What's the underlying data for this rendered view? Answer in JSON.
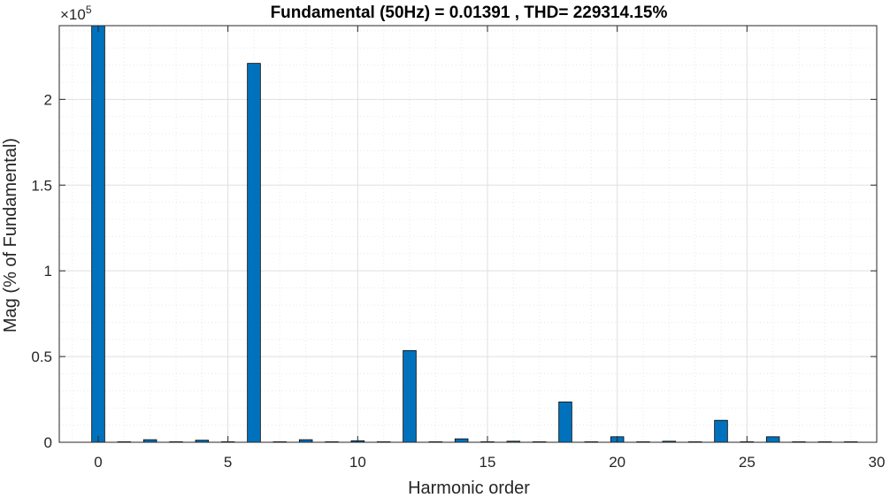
{
  "chart_data": {
    "type": "bar",
    "title": "Fundamental (50Hz) = 0.01391 , THD= 229314.15%",
    "xlabel": "Harmonic order",
    "ylabel": "Mag (% of Fundamental)",
    "y_exponent_base": "×10",
    "y_exponent_power": "5",
    "xlim": [
      -1.5,
      30
    ],
    "ylim": [
      0,
      243000
    ],
    "x_ticks": [
      0,
      5,
      10,
      15,
      20,
      25,
      30
    ],
    "x_tick_labels": [
      "0",
      "5",
      "10",
      "15",
      "20",
      "25",
      "30"
    ],
    "y_ticks": [
      0,
      50000,
      100000,
      150000,
      200000
    ],
    "y_tick_labels": [
      "0",
      "0.5",
      "1",
      "1.5",
      "2"
    ],
    "grid": true,
    "minor_grid": true,
    "bar_color": "#0072BD",
    "bar_edge_color": "#000000",
    "x": [
      0,
      1,
      2,
      3,
      4,
      5,
      6,
      7,
      8,
      9,
      10,
      11,
      12,
      13,
      14,
      15,
      16,
      17,
      18,
      19,
      20,
      21,
      22,
      23,
      24,
      25,
      26,
      27,
      28,
      29
    ],
    "values": [
      243000,
      300,
      1500,
      300,
      1200,
      300,
      221000,
      300,
      1500,
      300,
      900,
      300,
      53500,
      300,
      2000,
      300,
      600,
      300,
      23500,
      300,
      3200,
      300,
      600,
      300,
      12800,
      300,
      3200,
      300,
      300,
      300
    ]
  },
  "colors": {
    "grid_major": "#dfdfdf",
    "grid_minor": "#e8e8e8",
    "axis": "#262626"
  }
}
